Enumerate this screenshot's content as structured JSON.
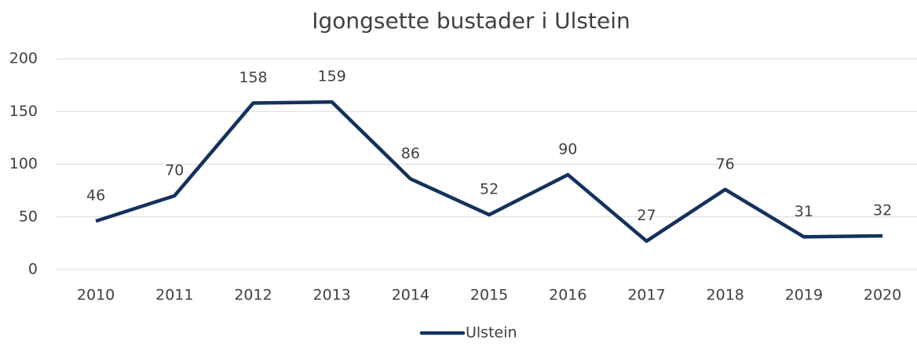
{
  "chart_data": {
    "type": "line",
    "title": "Igongsette bustader i Ulstein",
    "categories": [
      "2010",
      "2011",
      "2012",
      "2013",
      "2014",
      "2015",
      "2016",
      "2017",
      "2018",
      "2019",
      "2020"
    ],
    "series": [
      {
        "name": "Ulstein",
        "color": "#13315c",
        "values": [
          46,
          70,
          158,
          159,
          86,
          52,
          90,
          27,
          76,
          31,
          32
        ]
      }
    ],
    "ylim": [
      0,
      200
    ],
    "yticks": [
      0,
      50,
      100,
      150,
      200
    ],
    "grid": true,
    "legend": "bottom",
    "data_labels": true
  }
}
